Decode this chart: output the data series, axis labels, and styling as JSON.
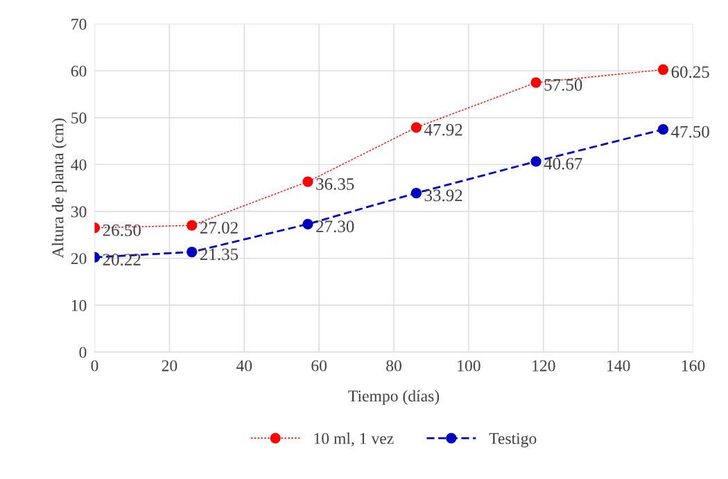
{
  "chart_data": {
    "type": "line",
    "xlabel": "Tiempo (días)",
    "ylabel": "Altura de planta (cm)",
    "x": [
      0,
      26,
      57,
      86,
      118,
      152
    ],
    "series": [
      {
        "name": "10 ml, 1 vez",
        "color": "#ff0000",
        "values": [
          26.5,
          27.02,
          36.35,
          47.92,
          57.5,
          60.25
        ],
        "value_labels": [
          "26.50",
          "27.02",
          "36.35",
          "47.92",
          "57.50",
          "60.25"
        ],
        "line_style": "dotted"
      },
      {
        "name": "Testigo",
        "color": "#0000c0",
        "values": [
          20.22,
          21.35,
          27.3,
          33.92,
          40.67,
          47.5
        ],
        "value_labels": [
          "20.22",
          "21.35",
          "27.30",
          "33.92",
          "40.67",
          "47.50"
        ],
        "line_style": "dashed"
      }
    ],
    "xlim": [
      0,
      160
    ],
    "xticks": [
      0,
      20,
      40,
      60,
      80,
      100,
      120,
      140,
      160
    ],
    "ylim": [
      0,
      70
    ],
    "yticks": [
      0,
      10,
      20,
      30,
      40,
      50,
      60,
      70
    ],
    "grid": true,
    "legend": "bottom",
    "marker": "circle"
  }
}
